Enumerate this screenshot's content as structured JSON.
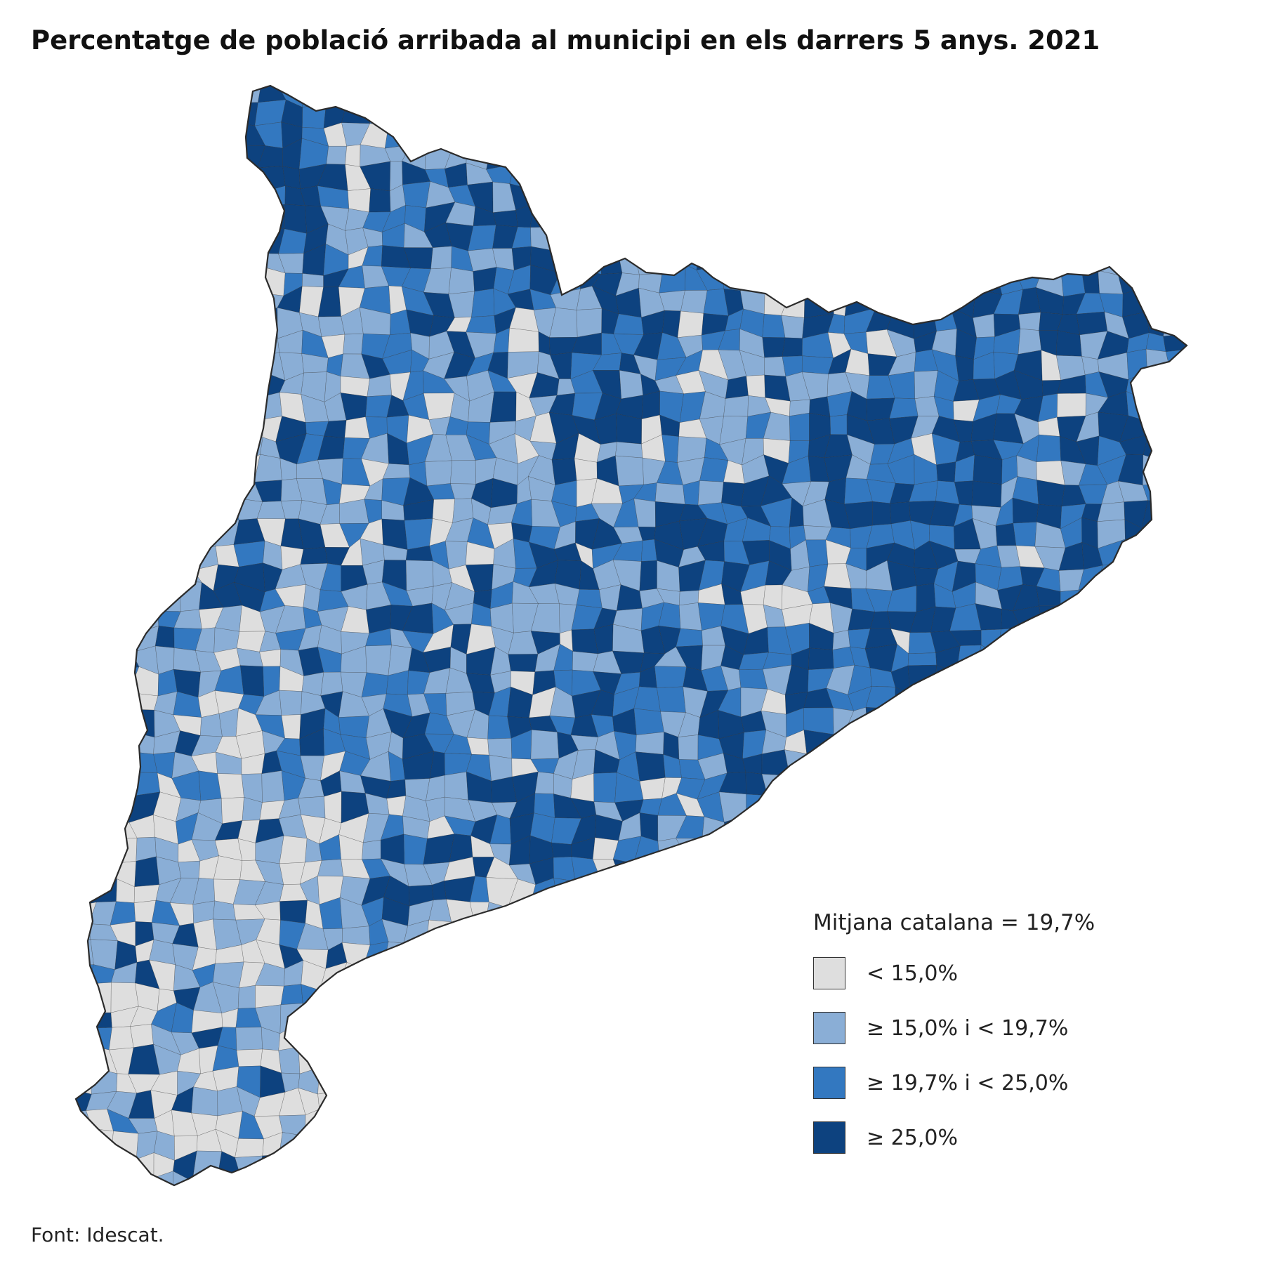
{
  "title": "Percentatge de població arribada al municipi en els darrers 5 anys. 2021",
  "map": {
    "region": "Catalunya",
    "unit": "%",
    "border_color": "#2b2b2b"
  },
  "legend": {
    "heading": "Mitjana catalana = 19,7%",
    "classes": [
      {
        "label": "< 15,0%",
        "color": "#dedede"
      },
      {
        "label": "≥ 15,0% i < 19,7%",
        "color": "#8aaed6"
      },
      {
        "label": "≥ 19,7% i < 25,0%",
        "color": "#3378c0"
      },
      {
        "label": "≥ 25,0%",
        "color": "#0d427f"
      }
    ]
  },
  "source": "Font: Idescat."
}
